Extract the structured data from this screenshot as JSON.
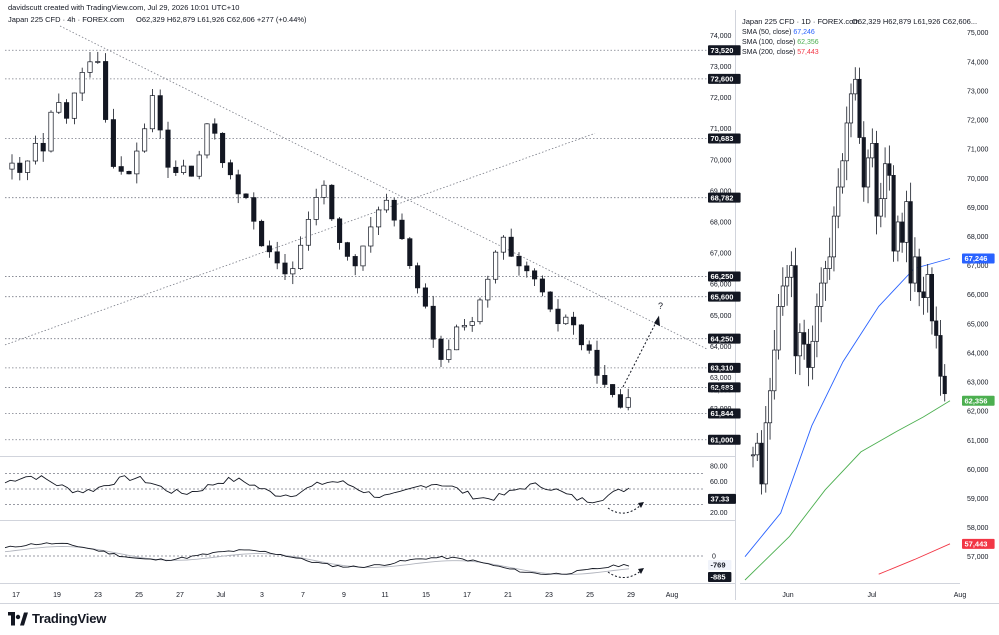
{
  "header": {
    "creator": "davidscutt created with TradingView.com, Jul 29, 2026 10:01 UTC+10",
    "left_title": "Japan 225 CFD · 4h · FOREX.com",
    "left_ohlc": "O62,329  H62,879  L61,926  C62,606  +277 (+0.44%)",
    "right_title": "Japan 225 CFD · 1D · FOREX.com",
    "right_ohlc": "O62,329  H62,879  L61,926  C62,606..."
  },
  "brand": {
    "logo_text": "TradingView"
  },
  "colors": {
    "sma50": "#2962ff",
    "sma100": "#4caf50",
    "sma200": "#f23645",
    "candle": "#131722",
    "grid": "#787b86"
  },
  "annotation": {
    "question_mark": "?"
  },
  "chart_data": [
    {
      "type": "candlestick",
      "id": "4h",
      "ylim": [
        60800,
        74300
      ],
      "right_axis_ticks": [
        "74,000",
        "73,000",
        "72,000",
        "71,000",
        "70,000",
        "69,000",
        "68,000",
        "67,000",
        "66,000",
        "65,000",
        "64,000",
        "63,000",
        "62,606",
        "62,000",
        "61,000"
      ],
      "horizontal_levels": [
        {
          "value": 73520,
          "label": "73,520"
        },
        {
          "value": 72600,
          "label": "72,600"
        },
        {
          "value": 70683,
          "label": "70,683"
        },
        {
          "value": 68782,
          "label": "68,782"
        },
        {
          "value": 66250,
          "label": "66,250"
        },
        {
          "value": 65600,
          "label": "65,600"
        },
        {
          "value": 64250,
          "label": "64,250"
        },
        {
          "value": 63310,
          "label": "63,310"
        },
        {
          "value": 62683,
          "label": "62,683"
        },
        {
          "value": 61844,
          "label": "61,844"
        },
        {
          "value": 61000,
          "label": "61,000"
        }
      ],
      "price_path": [
        69700,
        69450,
        69900,
        70400,
        70100,
        71300,
        71800,
        71300,
        72000,
        72600,
        73300,
        73600,
        71600,
        70100,
        69600,
        69300,
        70200,
        70800,
        72000,
        71300,
        69800,
        69500,
        69900,
        69300,
        69900,
        70800,
        71200,
        70300,
        69600,
        69000,
        68700,
        68400,
        67700,
        67000,
        66700,
        66300,
        66400,
        66900,
        67600,
        68300,
        69400,
        68700,
        67700,
        67000,
        66600,
        66700,
        67300,
        68100,
        68900,
        68400,
        67600,
        67100,
        66500,
        65600,
        64900,
        63700,
        63300,
        64300,
        64700,
        64900,
        64800,
        65500,
        66200,
        67200,
        67400,
        66600,
        66300,
        66300,
        66100,
        65500,
        64900,
        64800,
        65000,
        64600,
        64100,
        63600,
        63300,
        62600,
        62300,
        62100,
        62600
      ]
    },
    {
      "type": "oscillator",
      "id": "rsi",
      "axis_ticks": [
        "80.00",
        "60.00",
        "40.00",
        "20.00"
      ],
      "last_value": "37.33",
      "levels": [
        70,
        50,
        30
      ]
    },
    {
      "type": "oscillator",
      "id": "macd",
      "axis_ticks": [
        "0"
      ],
      "values": [
        "-769",
        "-885"
      ]
    },
    {
      "type": "candlestick",
      "id": "1d",
      "ylim": [
        56200,
        75300
      ],
      "right_axis_ticks": [
        "75,000",
        "74,000",
        "73,000",
        "72,000",
        "71,000",
        "70,000",
        "69,000",
        "68,000",
        "67,000",
        "66,000",
        "65,000",
        "64,000",
        "63,000",
        "62,000",
        "61,000",
        "60,000",
        "59,000",
        "58,000",
        "57,000"
      ],
      "price_path": [
        60500,
        60900,
        59500,
        61600,
        62700,
        64100,
        65600,
        66300,
        66600,
        67000,
        63900,
        64700,
        64300,
        63500,
        64400,
        65600,
        66400,
        66900,
        67300,
        68700,
        69700,
        70600,
        71900,
        72900,
        73400,
        71400,
        69700,
        70700,
        71200,
        68700,
        69300,
        70500,
        70100,
        67500,
        68500,
        67800,
        69200,
        66400,
        67300,
        66100,
        65900,
        66700,
        65100,
        64600,
        63200,
        62600
      ],
      "x_ticks": [
        "Jun",
        "Jul",
        "Aug"
      ],
      "sma": [
        {
          "name": "SMA (50, close)",
          "last": "67,246",
          "points": [
            [
              0,
              57000
            ],
            [
              8,
              58500
            ],
            [
              15,
              61500
            ],
            [
              22,
              63700
            ],
            [
              30,
              65600
            ],
            [
              38,
              66900
            ],
            [
              46,
              67246
            ]
          ]
        },
        {
          "name": "SMA (100, close)",
          "last": "62,356",
          "points": [
            [
              0,
              56200
            ],
            [
              10,
              57700
            ],
            [
              18,
              59300
            ],
            [
              26,
              60600
            ],
            [
              34,
              61300
            ],
            [
              40,
              61800
            ],
            [
              46,
              62356
            ]
          ]
        },
        {
          "name": "SMA (200, close)",
          "last": "57,443",
          "points": [
            [
              30,
              56400
            ],
            [
              38,
              56900
            ],
            [
              46,
              57443
            ]
          ]
        }
      ]
    }
  ],
  "x_axis_left": [
    "17",
    "19",
    "23",
    "25",
    "27",
    "Jul",
    "3",
    "7",
    "9",
    "11",
    "15",
    "17",
    "21",
    "23",
    "25",
    "29",
    "Aug"
  ]
}
